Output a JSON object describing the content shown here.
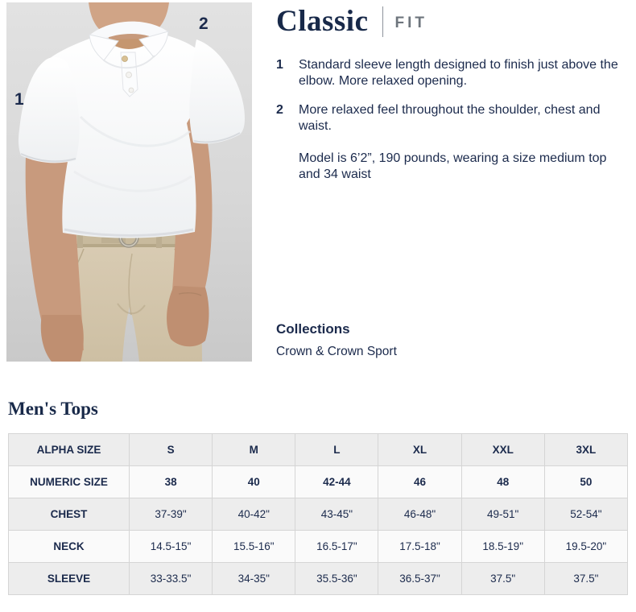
{
  "colors": {
    "navy_text": "#1b2a4c",
    "fit_label_gray": "#6e757d",
    "table_row_shade": "#ededed",
    "table_row_light": "#fafafa",
    "table_border": "#d5d5d5"
  },
  "fit": {
    "title": "Classic",
    "subtitle": "FIT",
    "points": [
      {
        "num": "1",
        "text": "Standard sleeve length designed to finish just above the elbow. More relaxed opening."
      },
      {
        "num": "2",
        "text": "More relaxed feel throughout the shoulder, chest and waist."
      }
    ],
    "model_note": "Model is 6’2”, 190 pounds, wearing a size medium top and 34 waist",
    "collections_heading": "Collections",
    "collections_value": "Crown & Crown Sport"
  },
  "photo": {
    "description": "model wearing white polo and khaki pants",
    "annotations": [
      {
        "label": "1"
      },
      {
        "label": "2"
      }
    ]
  },
  "size_table": {
    "title": "Men's Tops",
    "rows": [
      {
        "label": "ALPHA SIZE",
        "values": [
          "S",
          "M",
          "L",
          "XL",
          "XXL",
          "3XL"
        ],
        "bold_values": true
      },
      {
        "label": "NUMERIC SIZE",
        "values": [
          "38",
          "40",
          "42-44",
          "46",
          "48",
          "50"
        ],
        "bold_values": true
      },
      {
        "label": "CHEST",
        "values": [
          "37-39\"",
          "40-42\"",
          "43-45\"",
          "46-48\"",
          "49-51\"",
          "52-54\""
        ],
        "bold_values": false
      },
      {
        "label": "NECK",
        "values": [
          "14.5-15\"",
          "15.5-16\"",
          "16.5-17\"",
          "17.5-18\"",
          "18.5-19\"",
          "19.5-20\""
        ],
        "bold_values": false
      },
      {
        "label": "SLEEVE",
        "values": [
          "33-33.5\"",
          "34-35\"",
          "35.5-36\"",
          "36.5-37\"",
          "37.5\"",
          "37.5\""
        ],
        "bold_values": false
      }
    ]
  }
}
